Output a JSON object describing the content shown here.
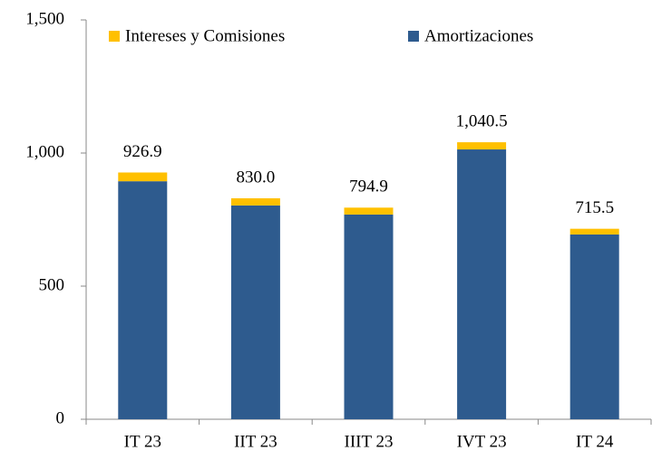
{
  "chart_data": {
    "type": "stacked_bar",
    "categories": [
      "IT 23",
      "IIT 23",
      "IIIT 23",
      "IVT 23",
      "IT 24"
    ],
    "series": [
      {
        "name": "Amortizaciones",
        "color": "#2e5b8e",
        "values": [
          894.0,
          803.0,
          768.9,
          1013.5,
          694.0
        ]
      },
      {
        "name": "Intereses y Comisiones",
        "color": "#ffc000",
        "values": [
          32.9,
          27.0,
          26.0,
          27.0,
          21.5
        ]
      }
    ],
    "totals": [
      926.9,
      830.0,
      794.9,
      1040.5,
      715.5
    ],
    "total_labels": [
      "926.9",
      "830.0",
      "794.9",
      "1,040.5",
      "715.5"
    ],
    "ylim": [
      0,
      1500
    ],
    "yticks": [
      0,
      500,
      {
        "value": 1000,
        "label": "1,000"
      },
      {
        "value": 1500,
        "label": "1,500"
      }
    ],
    "grid": false
  }
}
